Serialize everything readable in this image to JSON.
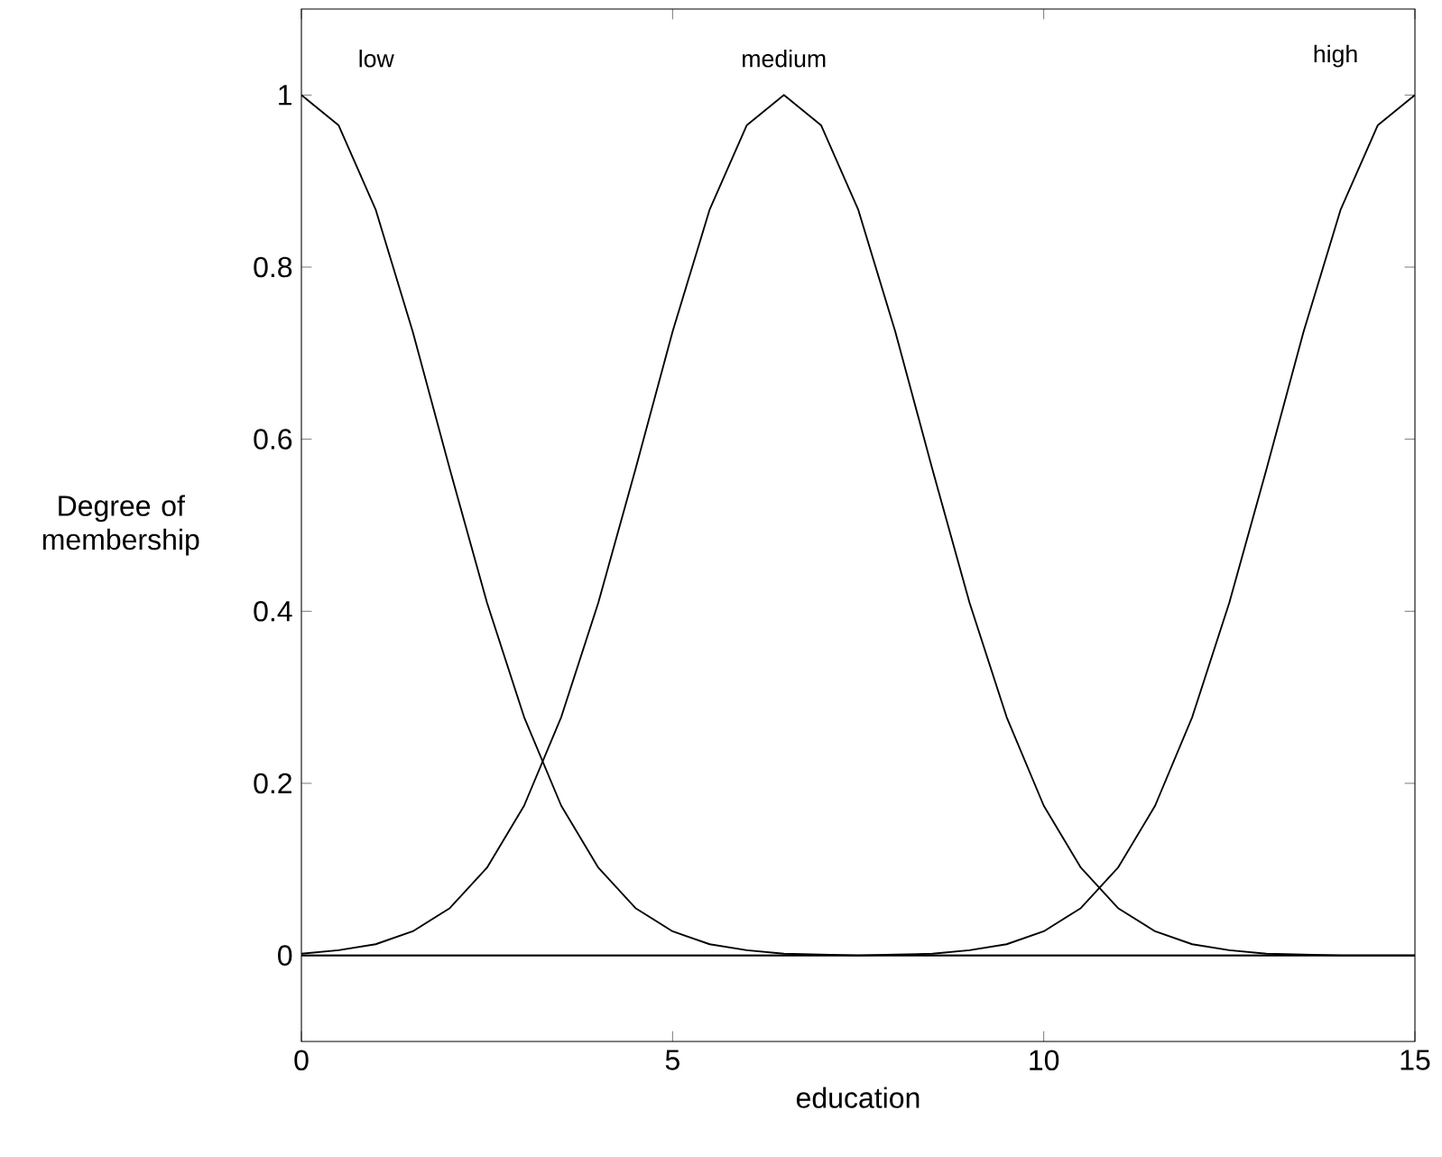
{
  "chart_data": {
    "type": "line",
    "xlabel": "education",
    "ylabel": "Degree of membership",
    "x": [
      0,
      0.5,
      1,
      1.5,
      2,
      2.5,
      3,
      3.5,
      4,
      4.5,
      5,
      5.5,
      6,
      6.5,
      7,
      7.5,
      8,
      8.5,
      9,
      9.5,
      10,
      10.5,
      11,
      11.5,
      12,
      12.5,
      13,
      13.5,
      14,
      14.5,
      15
    ],
    "series": [
      {
        "name": "low",
        "color": "#000000",
        "values": [
          1,
          0.965,
          0.867,
          0.725,
          0.565,
          0.41,
          0.277,
          0.174,
          0.102,
          0.055,
          0.028,
          0.013,
          0.006,
          0.002,
          0.001,
          0,
          0,
          0,
          0,
          0,
          0,
          0,
          0,
          0,
          0,
          0,
          0,
          0,
          0,
          0,
          0
        ]
      },
      {
        "name": "medium",
        "color": "#000000",
        "values": [
          0.002,
          0.006,
          0.013,
          0.028,
          0.055,
          0.102,
          0.174,
          0.277,
          0.41,
          0.565,
          0.725,
          0.867,
          0.965,
          1,
          0.965,
          0.867,
          0.725,
          0.565,
          0.41,
          0.277,
          0.174,
          0.102,
          0.055,
          0.028,
          0.013,
          0.006,
          0.002,
          0.001,
          0,
          0,
          0
        ]
      },
      {
        "name": "high",
        "color": "#000000",
        "values": [
          0,
          0,
          0,
          0,
          0,
          0,
          0,
          0,
          0,
          0,
          0,
          0,
          0,
          0,
          0,
          0,
          0.001,
          0.002,
          0.006,
          0.013,
          0.028,
          0.055,
          0.102,
          0.174,
          0.277,
          0.41,
          0.565,
          0.725,
          0.867,
          0.965,
          1
        ]
      }
    ],
    "xlim": [
      0,
      15
    ],
    "ylim": [
      -0.1,
      1.1
    ],
    "xticks": [
      0,
      5,
      10,
      15
    ],
    "yticks": [
      0,
      0.2,
      0.4,
      0.6,
      0.8,
      1
    ],
    "ref_lines": [
      {
        "axis": "y",
        "value": 0,
        "color": "#000000"
      }
    ],
    "marker": "none",
    "line_style": "solid"
  }
}
